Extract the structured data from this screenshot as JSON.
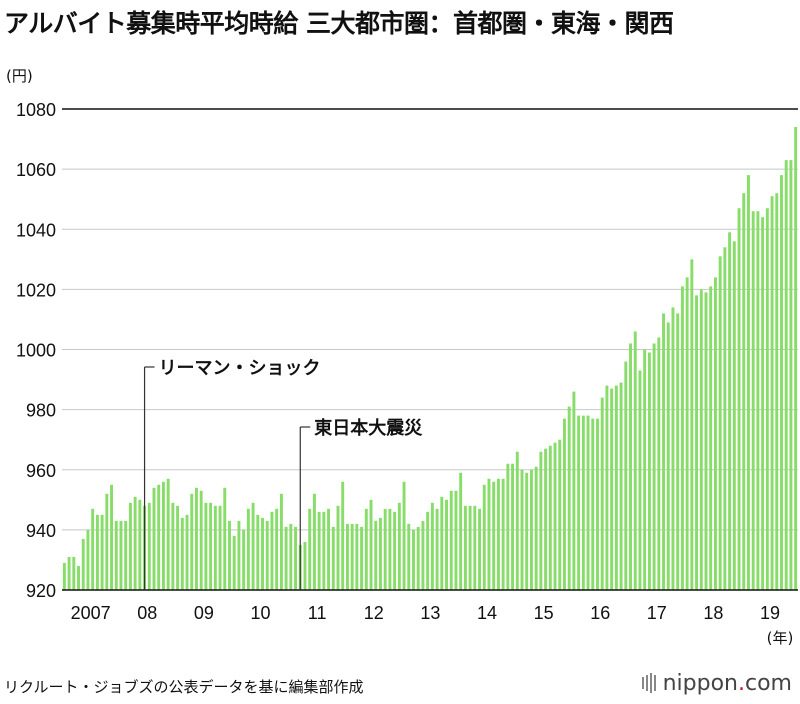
{
  "chart_data": {
    "type": "bar",
    "title": "アルバイト募集時平均時給 三大都市圏：首都圏・東海・関西",
    "y_unit_label": "(円)",
    "x_unit_label": "(年)",
    "ylim": [
      920,
      1080
    ],
    "yticks": [
      920,
      940,
      960,
      980,
      1000,
      1020,
      1040,
      1060,
      1080
    ],
    "year_labels": [
      {
        "label": "2007",
        "index": 6
      },
      {
        "label": "08",
        "index": 18
      },
      {
        "label": "09",
        "index": 30
      },
      {
        "label": "10",
        "index": 42
      },
      {
        "label": "11",
        "index": 54
      },
      {
        "label": "12",
        "index": 66
      },
      {
        "label": "13",
        "index": 78
      },
      {
        "label": "14",
        "index": 90
      },
      {
        "label": "15",
        "index": 102
      },
      {
        "label": "16",
        "index": 114
      },
      {
        "label": "17",
        "index": 126
      },
      {
        "label": "18",
        "index": 138
      },
      {
        "label": "19",
        "index": 150
      }
    ],
    "bar_color": "#88dd6a",
    "values": [
      929,
      931,
      931,
      928,
      937,
      940,
      947,
      945,
      945,
      952,
      955,
      943,
      943,
      943,
      949,
      951,
      950,
      948,
      949,
      954,
      955,
      956,
      957,
      949,
      948,
      944,
      945,
      952,
      954,
      953,
      949,
      949,
      948,
      948,
      954,
      943,
      938,
      943,
      940,
      947,
      949,
      945,
      944,
      943,
      946,
      947,
      952,
      941,
      942,
      941,
      935,
      936,
      947,
      952,
      946,
      946,
      947,
      941,
      948,
      956,
      942,
      942,
      942,
      941,
      947,
      950,
      943,
      944,
      947,
      947,
      946,
      949,
      956,
      942,
      940,
      941,
      943,
      946,
      949,
      947,
      951,
      950,
      953,
      953,
      959,
      948,
      948,
      948,
      947,
      955,
      957,
      956,
      957,
      957,
      962,
      962,
      966,
      960,
      959,
      960,
      961,
      966,
      967,
      968,
      969,
      970,
      977,
      981,
      986,
      978,
      978,
      978,
      977,
      977,
      984,
      988,
      987,
      988,
      989,
      996,
      1002,
      1006,
      993,
      1000,
      999,
      1002,
      1004,
      1012,
      1009,
      1014,
      1012,
      1021,
      1024,
      1030,
      1018,
      1020,
      1019,
      1021,
      1024,
      1031,
      1034,
      1039,
      1036,
      1047,
      1052,
      1058,
      1046,
      1046,
      1044,
      1047,
      1051,
      1052,
      1058,
      1063,
      1063,
      1074
    ],
    "annotations": [
      {
        "text": "リーマン・ショック",
        "index": 17
      },
      {
        "text": "東日本大震災",
        "index": 50
      }
    ],
    "gridlines": true
  },
  "footer": {
    "source": "リクルート・ジョブズの公表データを基に編集部作成",
    "brand_main": "nippon",
    "brand_dot": ".",
    "brand_tld": "com"
  }
}
